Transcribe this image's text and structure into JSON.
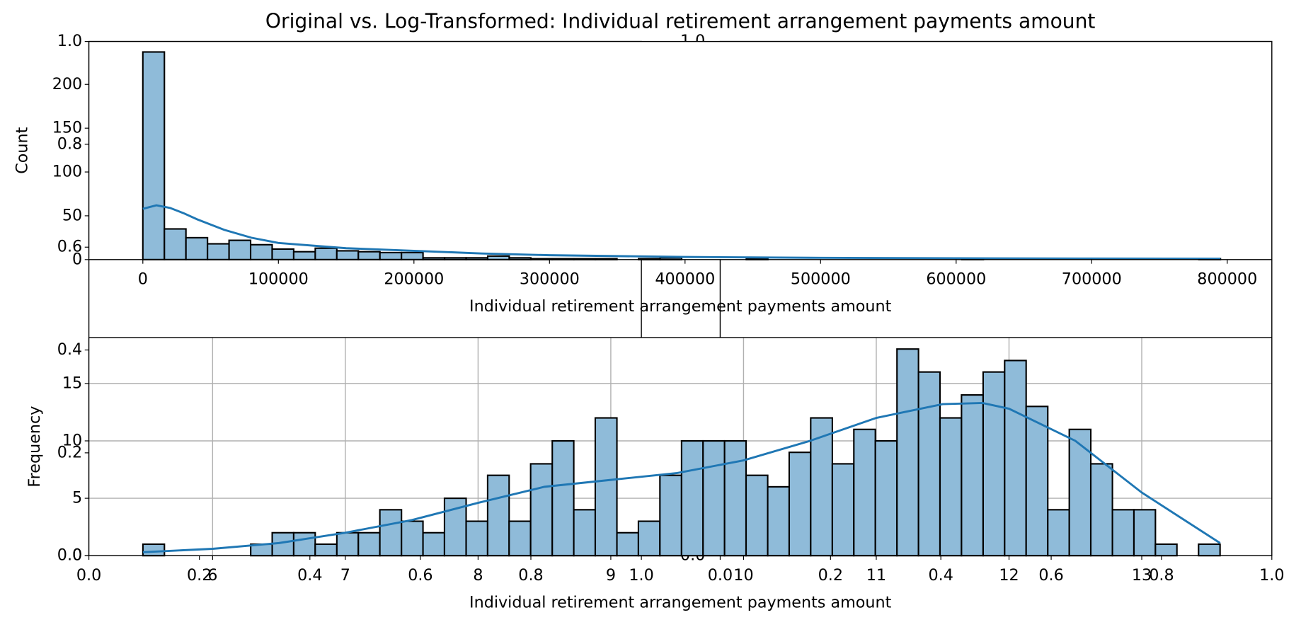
{
  "title": "Original vs. Log-Transformed: Individual retirement arrangement payments amount",
  "chart_data": [
    {
      "type": "histogram",
      "xlabel": "Individual retirement arrangement payments amount",
      "ylabel": "Count",
      "color": "#8fbbd9",
      "edgecolor": "#000000",
      "grid": false,
      "bins": [
        0,
        15900,
        31800,
        47700,
        63600,
        79500,
        95400,
        111300,
        127200,
        143100,
        159000,
        174900,
        190800,
        206700,
        222600,
        238500,
        254400,
        270300,
        286200,
        302100,
        318000,
        333900,
        349800,
        365700,
        381600,
        397500,
        413400,
        429300,
        445200,
        461100,
        477000,
        492900,
        508800,
        524700,
        540600,
        556500,
        572400,
        588300,
        604200,
        620100,
        636000,
        651900,
        667800,
        683700,
        699600,
        715500,
        731400,
        747300,
        763200,
        779100,
        795000
      ],
      "counts": [
        237,
        35,
        25,
        18,
        22,
        17,
        12,
        9,
        13,
        10,
        9,
        8,
        8,
        2,
        2,
        2,
        4,
        2,
        1,
        1,
        1,
        1,
        0,
        1,
        2,
        0,
        0,
        0,
        1,
        0,
        0,
        0,
        0,
        0,
        0,
        0,
        0,
        0,
        1,
        0,
        0,
        0,
        0,
        0,
        0,
        0,
        0,
        0,
        0,
        1
      ],
      "kde": {
        "color": "#1f77b4",
        "x": [
          0,
          10000,
          20000,
          30000,
          40000,
          60000,
          80000,
          100000,
          150000,
          200000,
          250000,
          300000,
          400000,
          500000,
          600000,
          700000,
          795000
        ],
        "y": [
          58,
          62,
          59,
          53,
          46,
          34,
          25,
          19,
          13,
          10,
          7,
          5,
          3,
          2,
          1.5,
          1.2,
          1
        ]
      },
      "xlim": [
        -39800,
        832900
      ],
      "ylim": [
        0,
        249
      ],
      "xticks": [
        0,
        100000,
        200000,
        300000,
        400000,
        500000,
        600000,
        700000,
        800000
      ],
      "yticks": [
        0,
        50,
        100,
        150,
        200
      ]
    },
    {
      "type": "histogram",
      "xlabel": "Individual retirement arrangement payments amount",
      "ylabel": "Frequency",
      "color": "#8fbbd9",
      "edgecolor": "#000000",
      "grid": true,
      "bins": [
        5.475,
        5.637,
        5.8,
        5.962,
        6.124,
        6.287,
        6.449,
        6.611,
        6.773,
        6.936,
        7.098,
        7.26,
        7.423,
        7.585,
        7.747,
        7.91,
        8.072,
        8.234,
        8.396,
        8.559,
        8.721,
        8.883,
        9.046,
        9.208,
        9.37,
        9.533,
        9.695,
        9.857,
        10.019,
        10.182,
        10.344,
        10.506,
        10.669,
        10.831,
        10.993,
        11.156,
        11.318,
        11.48,
        11.642,
        11.805,
        11.967,
        12.129,
        12.292,
        12.454,
        12.616,
        12.779,
        12.941,
        13.103,
        13.265,
        13.428,
        13.59
      ],
      "counts": [
        1,
        0,
        0,
        0,
        0,
        1,
        2,
        2,
        1,
        2,
        2,
        4,
        3,
        2,
        5,
        3,
        7,
        3,
        8,
        10,
        4,
        12,
        2,
        3,
        7,
        10,
        10,
        10,
        7,
        6,
        9,
        12,
        8,
        11,
        10,
        18,
        16,
        12,
        14,
        16,
        17,
        13,
        4,
        11,
        8,
        4,
        4,
        1,
        0,
        1
      ],
      "kde": {
        "color": "#1f77b4",
        "x": [
          5.475,
          6,
          6.5,
          7,
          7.5,
          8,
          8.5,
          9,
          9.5,
          10,
          10.5,
          11,
          11.5,
          11.8,
          12,
          12.5,
          13,
          13.59
        ],
        "y": [
          0.3,
          0.6,
          1.1,
          2,
          3.1,
          4.6,
          6,
          6.6,
          7.2,
          8.3,
          10,
          12,
          13.2,
          13.3,
          12.8,
          10,
          5.5,
          1.1
        ]
      },
      "xlim": [
        5.068,
        13.98
      ],
      "ylim": [
        0,
        19
      ],
      "xticks": [
        6,
        7,
        8,
        9,
        10,
        11,
        12,
        13
      ],
      "yticks": [
        0,
        5,
        10,
        15
      ]
    },
    {
      "type": "axes",
      "xlim": [
        0,
        1
      ],
      "ylim": [
        0,
        1
      ],
      "xticks": [
        {
          "value": 0,
          "label": "0.0"
        },
        0.2,
        0.4,
        0.6,
        0.8,
        {
          "value": 1,
          "label": "1.0"
        }
      ],
      "yticks": [
        {
          "value": 0,
          "label": "0.0"
        },
        0.2,
        0.4,
        0.6,
        0.8,
        {
          "value": 1,
          "label": "1.0"
        }
      ]
    },
    {
      "type": "axes",
      "xlim": [
        0,
        1
      ],
      "ylim": [
        0,
        1
      ],
      "xticks": [
        {
          "value": 0,
          "label": "0.0"
        },
        0.2,
        0.4,
        0.6,
        0.8,
        {
          "value": 1,
          "label": "1.0"
        }
      ]
    },
    {
      "type": "axes",
      "ylim": [
        0,
        1
      ],
      "yticks": [
        {
          "value": 0,
          "label": "0.0"
        },
        {
          "value": 1,
          "label": "1.0"
        }
      ]
    }
  ]
}
